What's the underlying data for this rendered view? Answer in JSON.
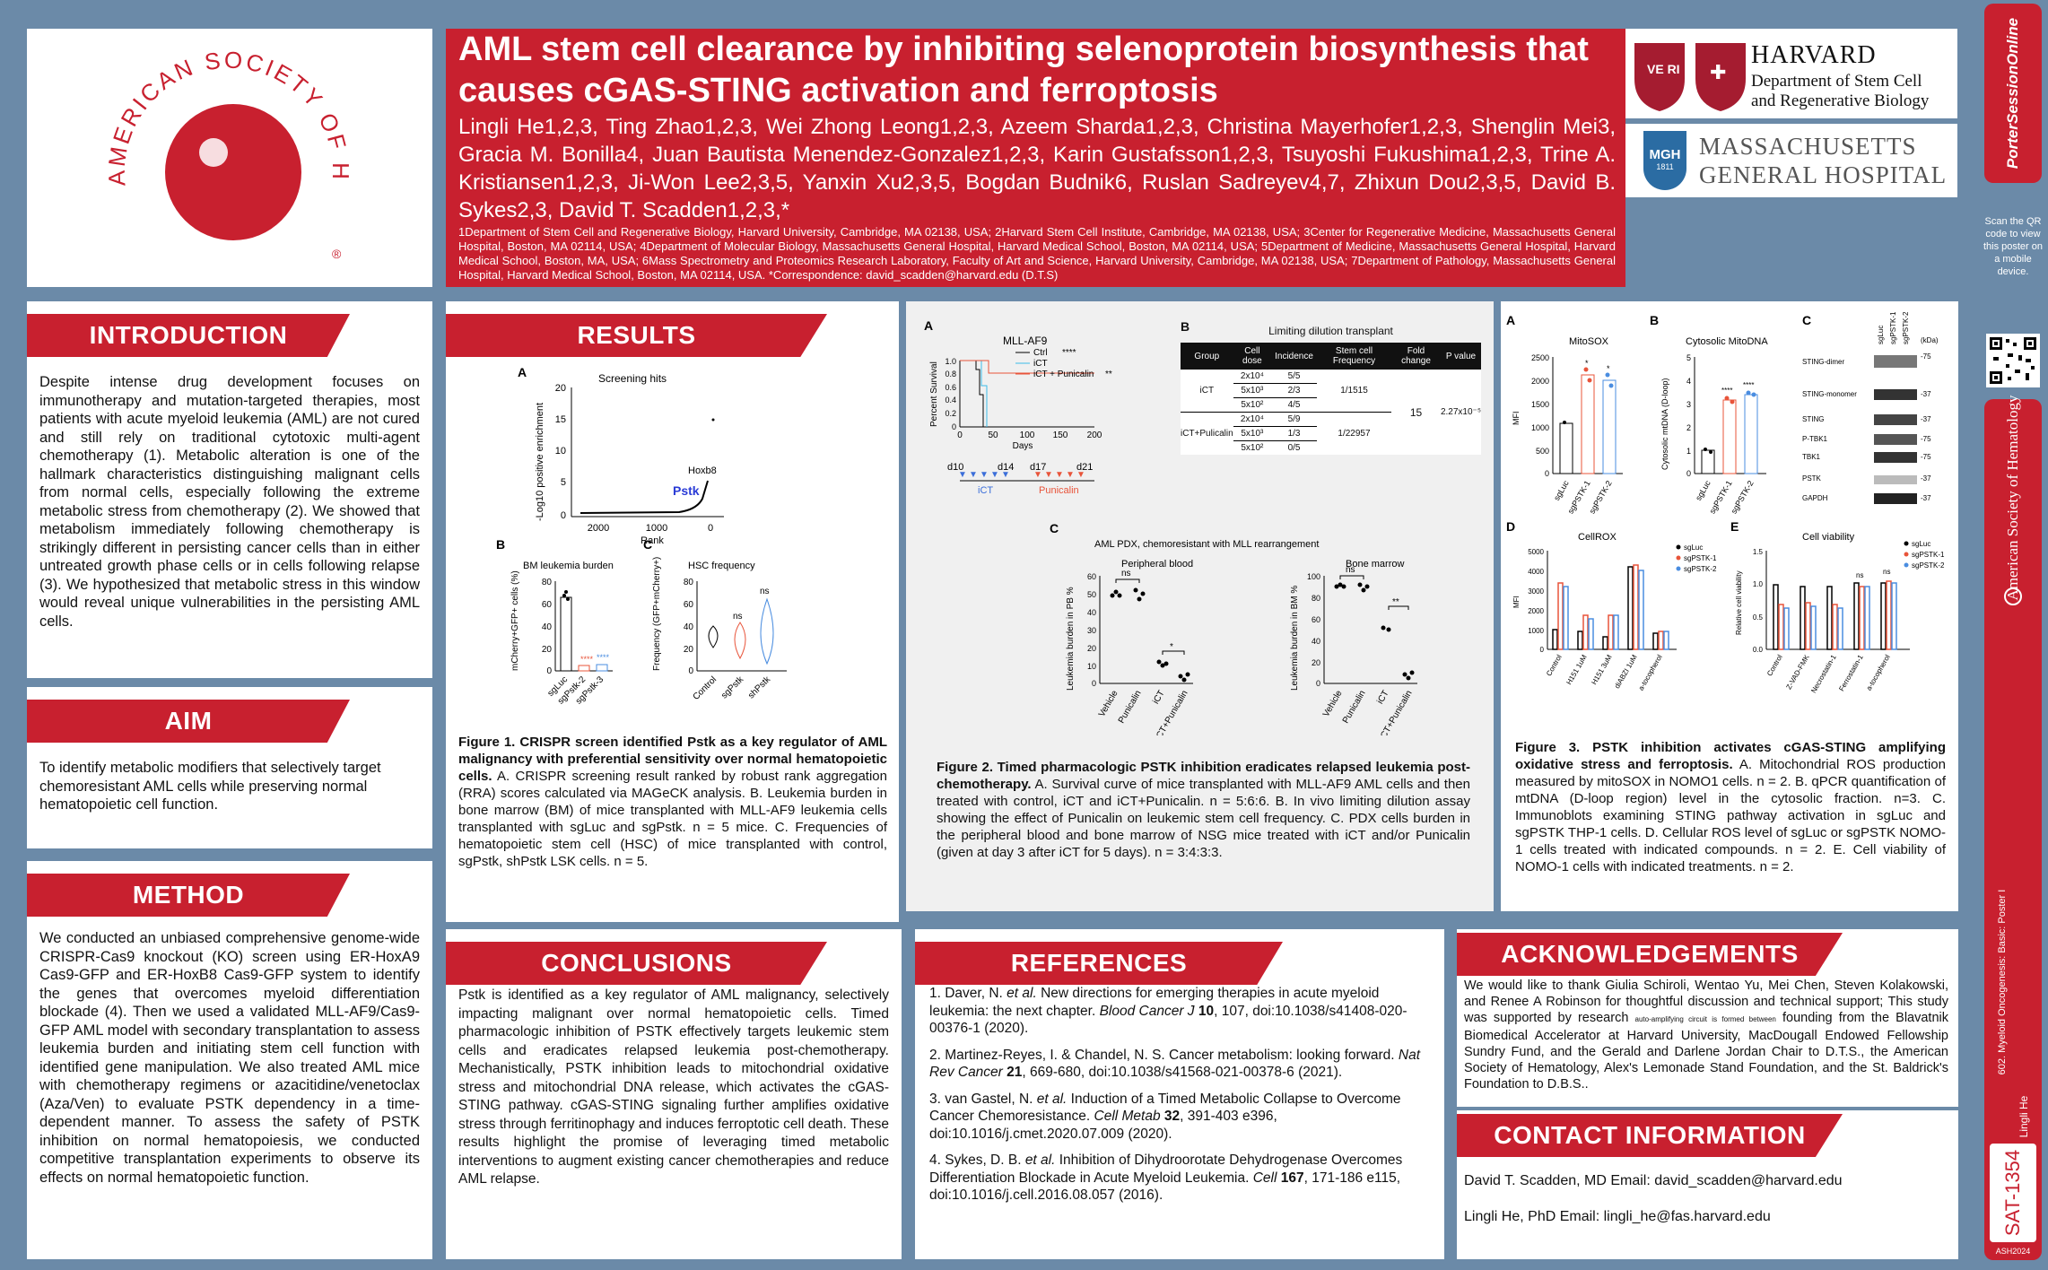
{
  "title": "AML stem cell clearance by inhibiting selenoprotein biosynthesis that causes cGAS-STING activation and ferroptosis",
  "authors": "Lingli He1,2,3, Ting Zhao1,2,3, Wei Zhong Leong1,2,3, Azeem Sharda1,2,3, Christina Mayerhofer1,2,3, Shenglin Mei3, Gracia M. Bonilla4, Juan Bautista Menendez-Gonzalez1,2,3, Karin Gustafsson1,2,3, Tsuyoshi Fukushima1,2,3, Trine A. Kristiansen1,2,3, Ji-Won Lee2,3,5, Yanxin Xu2,3,5, Bogdan Budnik6, Ruslan Sadreyev4,7, Zhixun Dou2,3,5, David B. Sykes2,3, David T. Scadden1,2,3,*",
  "affiliations": "1Department of Stem Cell and Regenerative Biology, Harvard University, Cambridge, MA 02138, USA; 2Harvard Stem Cell Institute, Cambridge, MA 02138, USA; 3Center for Regenerative Medicine, Massachusetts General Hospital, Boston, MA 02114, USA; 4Department of Molecular Biology, Massachusetts General Hospital, Harvard Medical School, Boston, MA 02114, USA; 5Department of Medicine, Massachusetts General Hospital, Harvard Medical School, Boston, MA, USA; 6Mass Spectrometry and Proteomics Research Laboratory, Faculty of Art and Science, Harvard University, Cambridge, MA 02138, USA; 7Department of Pathology, Massachusetts General Hospital, Harvard Medical School, Boston, MA 02114, USA. *Correspondence: david_scadden@harvard.edu (D.T.S)",
  "logos": {
    "ash": "AMERICAN SOCIETY OF HEMATOLOGY",
    "harvard_name": "HARVARD",
    "harvard_dept1": "Department of Stem Cell",
    "harvard_dept2": "and Regenerative Biology",
    "mgh_badge": "MGH",
    "mgh_year": "1811",
    "mgh_name1": "MASSACHUSETTS",
    "mgh_name2": "GENERAL HOSPITAL"
  },
  "sidebar": {
    "porter": "PorterSessionOnline",
    "qr_text": "Scan the QR code to view this poster on a mobile device.",
    "ash_vertical": "American Society of Hematology",
    "session": "602. Myeloid Oncogenesis: Basic: Poster I",
    "author": "Lingli He",
    "poster_id": "SAT-1354",
    "meeting": "ASH2024"
  },
  "sections": {
    "introduction": {
      "heading": "INTRODUCTION",
      "text": "Despite intense drug development focuses on immunotherapy and mutation-targeted therapies, most patients with acute myeloid leukemia (AML) are not cured and still rely on traditional cytotoxic multi-agent chemotherapy (1). Metabolic alteration is one of the hallmark characteristics distinguishing malignant cells from normal cells, especially following the extreme metabolic stress from chemotherapy (2). We showed that metabolism immediately following chemotherapy is strikingly different in persisting cancer cells than in either untreated growth phase cells or in cells following relapse (3). We hypothesized that metabolic stress in this window would reveal unique vulnerabilities in the persisting AML cells."
    },
    "aim": {
      "heading": "AIM",
      "text": "To identify metabolic modifiers that selectively target chemoresistant AML cells while preserving normal hematopoietic cell function."
    },
    "method": {
      "heading": "METHOD",
      "text": "We conducted an unbiased comprehensive genome-wide CRISPR-Cas9 knockout (KO) screen using ER-HoxA9 Cas9-GFP and ER-HoxB8 Cas9-GFP system to identify the genes that overcomes myeloid differentiation blockade (4). Then we used a validated MLL-AF9/Cas9-GFP AML model with secondary transplantation to assess leukemia burden and initiating stem cell function with identified gene manipulation. We also treated AML mice with chemotherapy regimens or azacitidine/venetoclax (Aza/Ven) to evaluate PSTK dependency in a time-dependent manner. To assess the safety of PSTK inhibition on normal hematopoiesis, we conducted competitive transplantation experiments to observe its effects on normal hematopoietic function."
    },
    "results": {
      "heading": "RESULTS"
    },
    "conclusions": {
      "heading": "CONCLUSIONS",
      "text": "Pstk is identified as a key regulator of AML malignancy, selectively impacting malignant over normal hematopoietic cells. Timed pharmacologic inhibition of PSTK effectively targets leukemic stem cells and eradicates relapsed leukemia post-chemotherapy. Mechanistically, PSTK inhibition leads to mitochondrial oxidative stress and mitochondrial DNA release, which activates the cGAS-STING pathway. cGAS-STING signaling further amplifies oxidative stress through ferritinophagy and induces ferroptotic cell death. These results highlight the promise of leveraging timed metabolic interventions to augment existing cancer chemotherapies and reduce AML relapse."
    },
    "references": {
      "heading": "REFERENCES",
      "items": [
        {
          "a": "1. Daver, N. ",
          "b": "et al.",
          "c": " New directions for emerging therapies in acute myeloid leukemia: the next chapter. ",
          "d": "Blood Cancer J",
          "e": " 10",
          "f": ", 107, doi:10.1038/s41408-020-00376-1 (2020)."
        },
        {
          "a": "2. Martinez-Reyes, I. & Chandel, N. S. Cancer metabolism: looking forward. ",
          "b": "",
          "c": "",
          "d": "Nat Rev Cancer",
          "e": " 21",
          "f": ", 669-680, doi:10.1038/s41568-021-00378-6 (2021)."
        },
        {
          "a": "3. van Gastel, N. ",
          "b": "et al.",
          "c": " Induction of a Timed Metabolic Collapse to Overcome Cancer Chemoresistance. ",
          "d": "Cell Metab",
          "e": " 32",
          "f": ", 391-403 e396, doi:10.1016/j.cmet.2020.07.009 (2020)."
        },
        {
          "a": "4. Sykes, D. B. ",
          "b": "et al.",
          "c": " Inhibition of Dihydroorotate Dehydrogenase Overcomes Differentiation Blockade in Acute Myeloid Leukemia. ",
          "d": "Cell",
          "e": " 167",
          "f": ", 171-186 e115, doi:10.1016/j.cell.2016.08.057 (2016)."
        }
      ]
    },
    "acknowledgements": {
      "heading": "ACKNOWLEDGEMENTS",
      "text1": "We would like to thank Giulia Schiroli, Wentao Yu, Mei Chen, Steven Kolakowski, and Renee A Robinson for thoughtful discussion and technical support; This study was supported by research ",
      "small": "auto-amplifying circuit is formed between",
      "text2": " founding from the Blavatnik Biomedical Accelerator at Harvard University, MacDougall Endowed Fellowship Sundry Fund, and the Gerald and Darlene Jordan Chair to D.T.S., the American Society of Hematology, Alex's Lemonade Stand Foundation, and the St. Baldrick's Foundation to D.B.S.."
    },
    "contact": {
      "heading": "CONTACT INFORMATION",
      "line1": "David T. Scadden, MD  Email: david_scadden@harvard.edu",
      "line2": "Lingli He, PhD  Email: lingli_he@fas.harvard.edu"
    }
  },
  "figure1": {
    "caption_bold": "Figure 1. CRISPR screen identified Pstk as a key regulator of AML malignancy with preferential sensitivity over normal hematopoietic cells.",
    "caption": " A. CRISPR screening result ranked by robust rank aggregation (RRA) scores calculated via MAGeCK analysis. B. Leukemia burden in bone marrow (BM) of mice transplanted with MLL-AF9 leukemia cells transplanted with sgLuc and sgPstk. n = 5 mice. C. Frequencies of hematopoietic stem cell (HSC) of mice transplanted with control, sgPstk, shPstk LSK cells. n = 5.",
    "A": {
      "label": "A",
      "title": "Screening hits",
      "ylabel": "-Log10 positive enrichment",
      "xlabel": "Rank",
      "yticks": [
        "20",
        "15",
        "10",
        "5",
        "0"
      ],
      "xticks": [
        "2000",
        "1000",
        "0"
      ],
      "hoxb8": "Hoxb8",
      "pstk": "Pstk"
    },
    "B": {
      "label": "B",
      "title": "BM leukemia burden",
      "ylabel": "mCherry+GFP+ cells (%)",
      "yticks": [
        "80",
        "60",
        "40",
        "20",
        "0"
      ],
      "cats": [
        "sgLuc",
        "sgPstk-2",
        "sgPstk-3"
      ],
      "sig": "****"
    },
    "C": {
      "label": "C",
      "title": "HSC frequency",
      "ylabel": "Frequency (GFP+mCherry+)",
      "yticks": [
        "80",
        "60",
        "40",
        "20",
        "0"
      ],
      "cats": [
        "Control",
        "sgPstk",
        "shPstk"
      ],
      "ns": "ns"
    }
  },
  "figure2": {
    "caption_bold": "Figure 2. Timed pharmacologic PSTK inhibition eradicates relapsed leukemia post-chemotherapy.",
    "caption": " A. Survival curve of mice transplanted with MLL-AF9 AML cells and then treated with control, iCT and iCT+Punicalin. n = 5:6:6. B. In vivo limiting dilution assay showing the effect of Punicalin on leukemic stem cell frequency. C. PDX cells burden in the peripheral blood and bone marrow of NSG mice treated with iCT and/or Punicalin (given at day 3 after iCT for 5 days). n = 3:4:3:3.",
    "A": {
      "label": "A",
      "title": "MLL-AF9",
      "ylabel": "Percent Survival",
      "xlabel": "Days",
      "yticks": [
        "1.0",
        "0.8",
        "0.6",
        "0.4",
        "0.2",
        "0"
      ],
      "xticks": [
        "0",
        "50",
        "100",
        "150",
        "200"
      ],
      "legend": [
        "Ctrl",
        "iCT",
        "iCT + Punicalin"
      ],
      "sig1": "****",
      "sig2": "**",
      "timeline": [
        "d10",
        "d14",
        "d17",
        "d21"
      ],
      "ict": "iCT",
      "punicalin": "Punicalin"
    },
    "B": {
      "label": "B",
      "title": "Limiting dilution transplant",
      "headers": [
        "Group",
        "Cell dose",
        "Incidence",
        "Stem cell Frequency",
        "Fold change",
        "P value"
      ],
      "rows": [
        [
          "iCT",
          "2x10⁴",
          "5/5"
        ],
        [
          "",
          "5x10³",
          "2/3"
        ],
        [
          "",
          "5x10²",
          "4/5"
        ],
        [
          "iCT+Pulicalin",
          "2x10⁴",
          "5/9"
        ],
        [
          "",
          "5x10³",
          "1/3"
        ],
        [
          "",
          "5x10²",
          "0/5"
        ]
      ],
      "freq1": "1/1515",
      "freq2": "1/22957",
      "fold": "15",
      "pval": "2.27x10⁻⁵"
    },
    "C": {
      "label": "C",
      "title": "AML PDX, chemoresistant with MLL rearrangement",
      "pb": "Peripheral blood",
      "bm": "Bone marrow",
      "ylabel_pb": "Leukemia burden in PB %",
      "ylabel_bm": "Leukemia burden in BM %",
      "yticks_pb": [
        "60",
        "50",
        "40",
        "30",
        "20",
        "10",
        "0"
      ],
      "yticks_bm": [
        "100",
        "80",
        "60",
        "40",
        "20",
        "0"
      ],
      "cats": [
        "Vehicle",
        "Punicalin",
        "iCT",
        "iCT+Punicalin"
      ],
      "ns": "ns",
      "star": "*",
      "star2": "**"
    }
  },
  "figure3": {
    "caption_bold": "Figure 3. PSTK inhibition activates cGAS-STING amplifying oxidative stress and ferroptosis.",
    "caption": " A. Mitochondrial ROS production measured by mitoSOX in NOMO1 cells. n = 2. B. qPCR quantification of mtDNA (D-loop region) level in the cytosolic fraction. n=3. C. Immunoblots examining STING pathway activation in sgLuc and sgPSTK THP-1 cells. D. Cellular ROS level of sgLuc or sgPSTK NOMO-1 cells treated with indicated compounds. n = 2. E. Cell viability of NOMO-1 cells with indicated treatments. n = 2.",
    "A": {
      "label": "A",
      "title": "MitoSOX",
      "ylabel": "MFI",
      "yticks": [
        "2500",
        "2000",
        "1500",
        "1000",
        "500",
        "0"
      ],
      "cats": [
        "sgLuc",
        "sgPSTK-1",
        "sgPSTK-2"
      ]
    },
    "B": {
      "label": "B",
      "title": "Cytosolic MitoDNA",
      "ylabel": "Cytosolic mtDNA (D-loop)",
      "yticks": [
        "5",
        "4",
        "3",
        "2",
        "1",
        "0"
      ],
      "cats": [
        "sgLuc",
        "sgPSTK-1",
        "sgPSTK-2"
      ],
      "sig": "****"
    },
    "C": {
      "label": "C",
      "cols": [
        "sgLuc",
        "sgPSTK-1",
        "sgPSTK-2"
      ],
      "kda": "(kDa)",
      "bands": [
        "STING-dimer",
        "STING-monomer",
        "STING",
        "P-TBK1",
        "TBK1",
        "PSTK",
        "GAPDH"
      ],
      "sizes": [
        "-75",
        "-37",
        "-37",
        "-75",
        "-75",
        "-37",
        "-37"
      ]
    },
    "D": {
      "label": "D",
      "title": "CellROX",
      "ylabel": "MFI",
      "yticks": [
        "5000",
        "4000",
        "3000",
        "2000",
        "1000",
        "0"
      ],
      "cats": [
        "Control",
        "H151 1uM",
        "H151 3uM",
        "diABZI 1uM",
        "a-tocopherol"
      ],
      "legend": [
        "sgLuc",
        "sgPSTK-1",
        "sgPSTK-2"
      ]
    },
    "E": {
      "label": "E",
      "title": "Cell viability",
      "ylabel": "Relative cell viability",
      "yticks": [
        "1.5",
        "1.0",
        "0.5",
        "0.0"
      ],
      "cats": [
        "Control",
        "Z-VAD-FMK",
        "Necrostatin-1",
        "Ferrostatin-1",
        "a-tocopherol"
      ],
      "legend": [
        "sgLuc",
        "sgPSTK-1",
        "sgPSTK-2"
      ],
      "ns": "ns"
    }
  },
  "colors": {
    "accent": "#c8202f",
    "frame": "#6b8aa8",
    "series2": "#e8543a",
    "series3": "#4a8de0"
  }
}
